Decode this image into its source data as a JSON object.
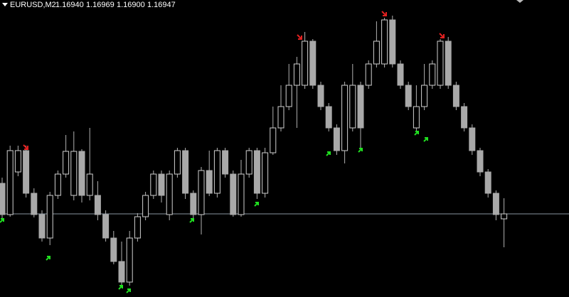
{
  "quote": {
    "symbol": "EURUSD,M2",
    "open": {
      "value": 1.1694,
      "label": "1.16940"
    },
    "high": {
      "value": 1.16969,
      "label": "1.16969"
    },
    "low": {
      "value": 1.169,
      "label": "1.16900"
    },
    "close": {
      "value": 1.16947,
      "label": "1.16947"
    }
  },
  "chart_data": {
    "type": "candlestick",
    "ylim": [
      1.1683,
      1.17248
    ],
    "up_color": "#000000",
    "down_color": "#a9a9a9",
    "outline_color": "#d0d0d0",
    "open": [
      1.1699,
      1.16946,
      1.17006,
      1.17036,
      1.16976,
      1.16946,
      1.16913,
      1.16973,
      1.17003,
      1.16973,
      1.17035,
      1.16973,
      1.16973,
      1.16946,
      1.16913,
      1.1688,
      1.16851,
      1.16913,
      1.16943,
      1.16973,
      1.17003,
      1.16946,
      1.17003,
      1.17036,
      1.16976,
      1.16946,
      1.17008,
      1.16976,
      1.17036,
      1.17003,
      1.16946,
      1.17003,
      1.17036,
      1.16976,
      1.17033,
      1.17068,
      1.17098,
      1.17128,
      1.17128,
      1.1719,
      1.17128,
      1.17098,
      1.17068,
      1.17036,
      1.17068,
      1.17128,
      1.17128,
      1.17158,
      1.17158,
      1.1722,
      1.17158,
      1.17128,
      1.17068,
      1.17098,
      1.17128,
      1.17128,
      1.1719,
      1.17128,
      1.17098,
      1.17068,
      1.17036,
      1.17006,
      1.16976,
      1.1694
    ],
    "high": [
      1.16998,
      1.17043,
      1.17043,
      1.17043,
      1.16983,
      1.16952,
      1.16978,
      1.17008,
      1.17058,
      1.17063,
      1.17038,
      1.17068,
      1.16993,
      1.16952,
      1.16923,
      1.16908,
      1.16923,
      1.16948,
      1.16978,
      1.17008,
      1.17008,
      1.17008,
      1.1704,
      1.1704,
      1.1698,
      1.17013,
      1.17036,
      1.1704,
      1.1704,
      1.17008,
      1.17023,
      1.1704,
      1.1704,
      1.1704,
      1.17098,
      1.17128,
      1.17158,
      1.17168,
      1.17203,
      1.17193,
      1.17133,
      1.17103,
      1.17073,
      1.17133,
      1.17158,
      1.17133,
      1.17163,
      1.17218,
      1.17223,
      1.17226,
      1.17163,
      1.17133,
      1.17128,
      1.17158,
      1.17163,
      1.17193,
      1.17196,
      1.17133,
      1.17103,
      1.17073,
      1.1704,
      1.1701,
      1.1698,
      1.16969
    ],
    "low": [
      1.16938,
      1.16943,
      1.17,
      1.1697,
      1.16942,
      1.16908,
      1.16903,
      1.16968,
      1.16998,
      1.16966,
      1.16963,
      1.16966,
      1.16938,
      1.16908,
      1.16876,
      1.16846,
      1.16846,
      1.16908,
      1.16938,
      1.16968,
      1.16963,
      1.16938,
      1.16998,
      1.16968,
      1.1694,
      1.16918,
      1.16972,
      1.1697,
      1.16998,
      1.16943,
      1.16943,
      1.16998,
      1.16968,
      1.1697,
      1.1703,
      1.17063,
      1.17093,
      1.17068,
      1.17123,
      1.17123,
      1.17093,
      1.17063,
      1.1703,
      1.17018,
      1.17063,
      1.17038,
      1.17123,
      1.17153,
      1.17153,
      1.17153,
      1.17123,
      1.17093,
      1.17063,
      1.17093,
      1.17123,
      1.17123,
      1.17123,
      1.17093,
      1.17063,
      1.1703,
      1.17,
      1.1697,
      1.16938,
      1.169
    ],
    "close": [
      1.16946,
      1.17036,
      1.17036,
      1.16976,
      1.16946,
      1.16913,
      1.16973,
      1.17003,
      1.17035,
      1.17035,
      1.16973,
      1.17003,
      1.16946,
      1.16913,
      1.1688,
      1.16851,
      1.16913,
      1.16943,
      1.16973,
      1.17003,
      1.16973,
      1.17003,
      1.17036,
      1.16976,
      1.16946,
      1.17008,
      1.16976,
      1.17036,
      1.17003,
      1.16946,
      1.17003,
      1.17036,
      1.16976,
      1.17033,
      1.17068,
      1.17098,
      1.17128,
      1.17158,
      1.1719,
      1.17128,
      1.17098,
      1.17068,
      1.17036,
      1.17128,
      1.17128,
      1.17068,
      1.17158,
      1.1719,
      1.1722,
      1.17158,
      1.17128,
      1.17098,
      1.17098,
      1.17128,
      1.17158,
      1.1719,
      1.17128,
      1.17098,
      1.17068,
      1.17036,
      1.17006,
      1.16976,
      1.16946,
      1.16947
    ]
  }
}
